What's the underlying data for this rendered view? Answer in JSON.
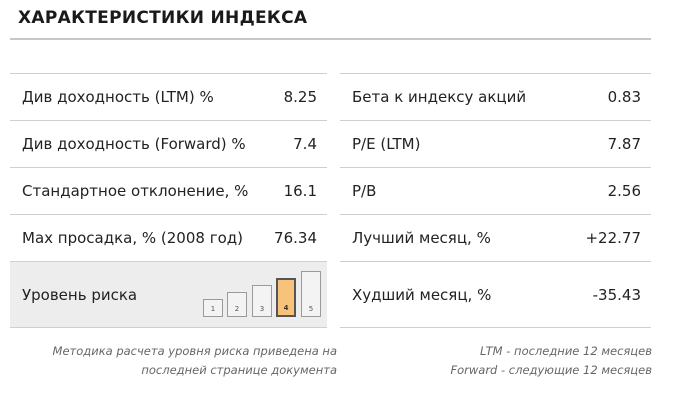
{
  "title": "ХАРАКТЕРИСТИКИ ИНДЕКСА",
  "left_rows": [
    {
      "label": "Див доходность (LTM) %",
      "value": "8.25"
    },
    {
      "label": "Див доходность (Forward) %",
      "value": "7.4"
    },
    {
      "label": "Стандартное отклонение, %",
      "value": "16.1"
    },
    {
      "label": "Max просадка, % (2008 год)",
      "value": "76.34"
    },
    {
      "label": "Уровень риска"
    }
  ],
  "right_rows": [
    {
      "label": "Бета к индексу акций",
      "value": "0.83"
    },
    {
      "label": "P/E (LTM)",
      "value": "7.87"
    },
    {
      "label": "P/B",
      "value": "2.56"
    },
    {
      "label": "Лучший месяц, %",
      "value": "+22.77"
    },
    {
      "label": "Худший месяц, %",
      "value": "-35.43"
    }
  ],
  "risk": {
    "levels": [
      "1",
      "2",
      "3",
      "4",
      "5"
    ],
    "selected": 4,
    "highlight_color": "#f7c27a"
  },
  "notes": {
    "left_line1": "Методика расчета уровня риска приведена на",
    "left_line2": "последней странице документа",
    "right_line1": "LTM - последние 12 месяцев",
    "right_line2": "Forward - следующие 12 месяцев"
  }
}
